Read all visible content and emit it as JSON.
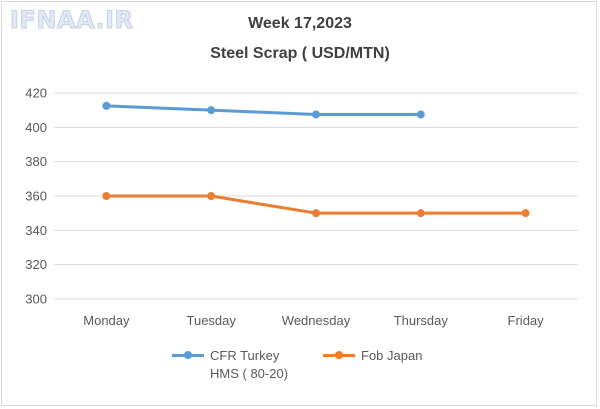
{
  "watermark": "IFNAA.IR",
  "chart_data": {
    "type": "line",
    "title": "Week 17,2023",
    "subtitle": "Steel Scrap ( USD/MTN)",
    "categories": [
      "Monday",
      "Tuesday",
      "Wednesday",
      "Thursday",
      "Friday"
    ],
    "ylim": [
      300,
      420
    ],
    "yticks": [
      300,
      320,
      340,
      360,
      380,
      400,
      420
    ],
    "grid": true,
    "legend_position": "bottom",
    "series": [
      {
        "name": "CFR Turkey",
        "name_line2": "HMS ( 80-20)",
        "color": "#5b9bd5",
        "values": [
          412.5,
          410,
          407.5,
          407.5,
          null
        ]
      },
      {
        "name": "Fob Japan",
        "color": "#ed7d31",
        "values": [
          360,
          360,
          350,
          350,
          350
        ]
      }
    ]
  }
}
